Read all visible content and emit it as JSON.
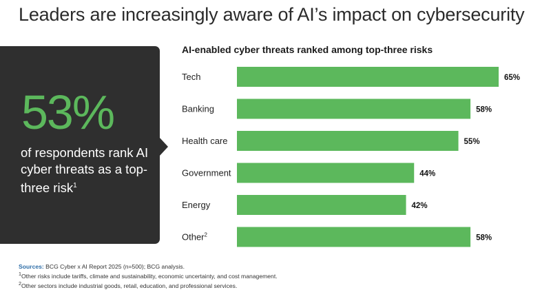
{
  "title": "Leaders are increasingly aware of AI’s impact on cybersecurity",
  "callout": {
    "big_stat": "53%",
    "description": "of respondents rank AI cyber threats as a top-three risk",
    "footnote_mark": "1"
  },
  "colors": {
    "bar": "#5cb85c",
    "callout_bg": "#2f2f2f",
    "stat": "#5cb85c"
  },
  "chart_data": {
    "type": "bar",
    "orientation": "horizontal",
    "title": "AI-enabled cyber threats ranked among top-three risks",
    "categories": [
      "Tech",
      "Banking",
      "Health care",
      "Government",
      "Energy",
      "Other"
    ],
    "category_superscripts": [
      "",
      "",
      "",
      "",
      "",
      "2"
    ],
    "values": [
      65,
      58,
      55,
      44,
      42,
      58
    ],
    "value_labels": [
      "65%",
      "58%",
      "55%",
      "44%",
      "42%",
      "58%"
    ],
    "unit": "%",
    "xlim": [
      0,
      65
    ],
    "grid": false,
    "xlabel": "",
    "ylabel": ""
  },
  "footnotes": {
    "sources_label": "Sources:",
    "sources_text": " BCG Cyber x AI Report 2025 (n=500); BCG analysis.",
    "note1_mark": "1",
    "note1": "Other risks include tariffs, climate and sustainability, economic uncertainty, and cost management.",
    "note2_mark": "2",
    "note2": "Other sectors include industrial goods, retail, education, and professional services."
  }
}
